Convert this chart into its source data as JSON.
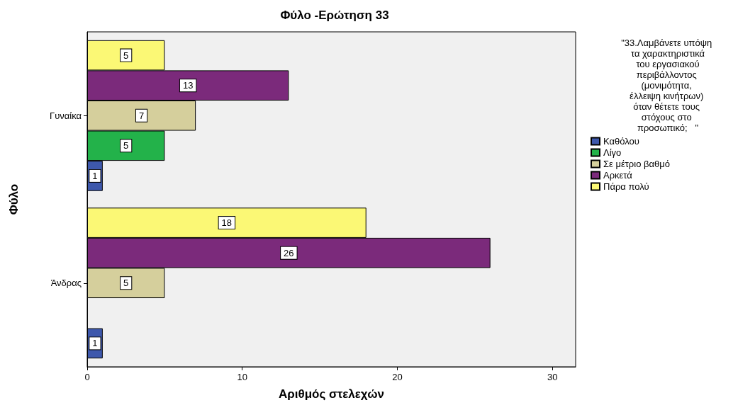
{
  "chart_data": {
    "type": "bar",
    "orientation": "horizontal",
    "title": "Φύλο -Ερώτηση 33",
    "xlabel": "Αριθμός στελεχών",
    "ylabel": "Φύλο",
    "legend_title": "\"33.Λαμβάνετε υπόψη τα χαρακτηριστικά του εργασιακού περιβάλλοντος (μονιμότητα, έλλειψη κινήτρων) όταν θέτετε τους στόχους στο προσωπικό;   \"",
    "categories": [
      "Γυναίκα",
      "Άνδρας"
    ],
    "series": [
      {
        "name": "Καθόλου",
        "color": "#3e58ac",
        "values": [
          1,
          1
        ]
      },
      {
        "name": "Λίγο",
        "color": "#23b24a",
        "values": [
          5,
          null
        ]
      },
      {
        "name": "Σε μέτριο βαθμό",
        "color": "#d5cf9c",
        "values": [
          7,
          5
        ]
      },
      {
        "name": "Αρκετά",
        "color": "#7b2a7b",
        "values": [
          13,
          26
        ]
      },
      {
        "name": "Πάρα πολύ",
        "color": "#fbf875",
        "values": [
          5,
          18
        ]
      }
    ],
    "xlim": [
      0,
      31.5
    ],
    "xticks": [
      0,
      10,
      20,
      30
    ],
    "grid": false,
    "legend": "right",
    "data_labels": true
  }
}
